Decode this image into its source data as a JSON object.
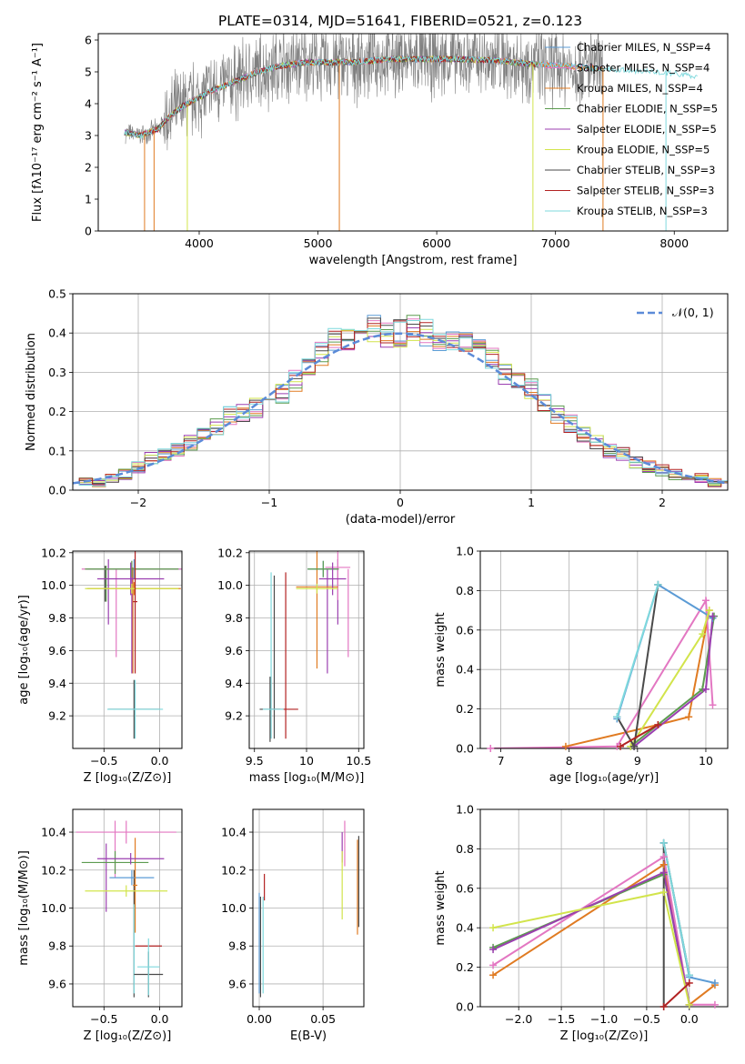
{
  "colors": {
    "chabrier_miles": "#5b9bd5",
    "salpeter_miles": "#e377c2",
    "kroupa_miles": "#e07b22",
    "chabrier_elodie": "#5c9c4f",
    "salpeter_elodie": "#9b3fb0",
    "kroupa_elodie": "#d2e44b",
    "chabrier_stelib": "#4a4a4a",
    "salpeter_stelib": "#b22222",
    "kroupa_stelib": "#7fd9dd",
    "spectrum_data": "#808080",
    "normal_curve": "#5b8bd8"
  },
  "chart_data": [
    {
      "id": "spectrum",
      "type": "line",
      "title": "PLATE=0314, MJD=51641, FIBERID=0521, z=0.123",
      "xlabel": "wavelength [Angstrom, rest frame]",
      "ylabel": "Flux [fλ10⁻¹⁷ erg cm⁻² s⁻¹ A⁻¹]",
      "xlim": [
        3150,
        8450
      ],
      "ylim": [
        0,
        6.2
      ],
      "xticks": [
        4000,
        5000,
        6000,
        7000,
        8000
      ],
      "yticks": [
        0,
        1,
        2,
        3,
        4,
        5,
        6
      ],
      "legend_position": "upper-right",
      "legend": [
        "Chabrier MILES, N_SSP=4",
        "Salpeter MILES, N_SSP=4",
        "Kroupa MILES, N_SSP=4",
        "Chabrier ELODIE, N_SSP=5",
        "Salpeter ELODIE, N_SSP=5",
        "Kroupa ELODIE, N_SSP=5",
        "Chabrier STELIB, N_SSP=3",
        "Salpeter STELIB, N_SSP=3",
        "Kroupa STELIB, N_SSP=3"
      ],
      "continuum": [
        [
          3370,
          3.1
        ],
        [
          3500,
          3.0
        ],
        [
          3650,
          3.2
        ],
        [
          3750,
          3.6
        ],
        [
          3850,
          3.9
        ],
        [
          3950,
          4.1
        ],
        [
          4100,
          4.4
        ],
        [
          4300,
          4.7
        ],
        [
          4500,
          5.0
        ],
        [
          4700,
          5.2
        ],
        [
          4900,
          5.3
        ],
        [
          5100,
          5.3
        ],
        [
          5300,
          5.3
        ],
        [
          5600,
          5.4
        ],
        [
          5900,
          5.4
        ],
        [
          6200,
          5.4
        ],
        [
          6500,
          5.35
        ],
        [
          6800,
          5.25
        ],
        [
          7200,
          5.15
        ],
        [
          7600,
          5.05
        ],
        [
          8000,
          4.95
        ],
        [
          8200,
          4.85
        ]
      ],
      "data_x_range": [
        3380,
        7400
      ],
      "data_noise_amplitude": 1.0
    },
    {
      "id": "residual_histogram",
      "type": "area",
      "xlabel": "(data-model)/error",
      "ylabel": "Normed distribution",
      "xlim": [
        -2.5,
        2.5
      ],
      "ylim": [
        0,
        0.5
      ],
      "xticks": [
        -2,
        -1,
        0,
        1,
        2
      ],
      "xtick_labels": [
        "−2",
        "−1",
        "0",
        "1",
        "2"
      ],
      "yticks": [
        0,
        0.1,
        0.2,
        0.3,
        0.4,
        0.5
      ],
      "bin_edges_range": [
        -2.55,
        2.55
      ],
      "bin_width": 0.1,
      "profile": [
        0.03,
        0.02,
        0.02,
        0.03,
        0.04,
        0.06,
        0.08,
        0.09,
        0.1,
        0.12,
        0.14,
        0.16,
        0.19,
        0.2,
        0.21,
        0.23,
        0.25,
        0.28,
        0.31,
        0.35,
        0.38,
        0.39,
        0.4,
        0.41,
        0.4,
        0.4,
        0.41,
        0.4,
        0.39,
        0.38,
        0.37,
        0.35,
        0.33,
        0.3,
        0.27,
        0.26,
        0.22,
        0.19,
        0.17,
        0.14,
        0.12,
        0.1,
        0.09,
        0.07,
        0.06,
        0.05,
        0.04,
        0.03,
        0.03,
        0.02,
        0.02
      ],
      "legend": [
        "𝒩(0, 1)"
      ],
      "legend_position": "upper-right",
      "normal": {
        "mean": 0,
        "sigma": 1
      }
    },
    {
      "id": "age_vs_Z",
      "type": "scatter",
      "xlabel": "Z [log₁₀(Z/Z⊙)]",
      "ylabel": "age  [log₁₀(age/yr)]",
      "xlim": [
        -0.78,
        0.2
      ],
      "ylim": [
        9.0,
        10.21
      ],
      "xticks": [
        -0.5,
        0.0
      ],
      "xtick_labels": [
        "−0.5",
        "0.0"
      ],
      "yticks": [
        9.2,
        9.4,
        9.6,
        9.8,
        10.0,
        10.2
      ],
      "points": [
        {
          "model": "chabrier_miles",
          "x": -0.23,
          "y": 10.1,
          "xerr": 0.42,
          "yerr": 0.06
        },
        {
          "model": "salpeter_miles",
          "x": -0.25,
          "y": 10.1,
          "xerr": 0.45,
          "yerr": 0.05
        },
        {
          "model": "kroupa_miles",
          "x": -0.23,
          "y": 9.98,
          "xerr": 0.42,
          "yerr": 0.04
        },
        {
          "model": "chabrier_elodie",
          "x": -0.25,
          "y": 10.1,
          "xerr": 0.42,
          "yerr": 0.05
        },
        {
          "model": "salpeter_elodie",
          "x": -0.26,
          "y": 10.04,
          "xerr": 0.3,
          "yerr": 0.1
        },
        {
          "model": "kroupa_elodie",
          "x": -0.25,
          "y": 9.98,
          "xerr": 0.42,
          "yerr": 0.03
        },
        {
          "model": "chabrier_stelib",
          "x": -0.23,
          "y": 9.24,
          "xerr": 0.23,
          "yerr": 0.18
        },
        {
          "model": "salpeter_stelib",
          "x": -0.22,
          "y": 9.9,
          "xerr": 0.02,
          "yerr": 0.44
        },
        {
          "model": "kroupa_stelib",
          "x": -0.22,
          "y": 9.24,
          "xerr": 0.25,
          "yerr": 0.18
        }
      ],
      "vertical_bars": [
        {
          "model": "salpeter_miles",
          "x": -0.39,
          "y1": 9.56,
          "y2": 10.1
        },
        {
          "model": "salpeter_elodie",
          "x": -0.46,
          "y1": 9.76,
          "y2": 10.16
        },
        {
          "model": "chabrier_elodie",
          "x": -0.48,
          "y1": 9.9,
          "y2": 10.12
        },
        {
          "model": "chabrier_stelib",
          "x": -0.49,
          "y1": 9.9,
          "y2": 10.12
        },
        {
          "model": "salpeter_elodie",
          "x": -0.25,
          "y1": 9.46,
          "y2": 10.14
        },
        {
          "model": "kroupa_miles",
          "x": -0.24,
          "y1": 9.46,
          "y2": 10.11
        }
      ]
    },
    {
      "id": "age_vs_mass",
      "type": "scatter",
      "xlabel": "mass [log₁₀(M/M⊙)]",
      "ylabel": "",
      "xlim": [
        9.45,
        10.55
      ],
      "ylim": [
        9.0,
        10.21
      ],
      "xticks": [
        9.5,
        10.0,
        10.5
      ],
      "yticks": [
        9.2,
        9.4,
        9.6,
        9.8,
        10.0,
        10.2
      ],
      "points": [
        {
          "model": "chabrier_miles",
          "x": 10.16,
          "y": 10.1,
          "xerr": 0.15,
          "yerr": 0.05
        },
        {
          "model": "salpeter_miles",
          "x": 10.3,
          "y": 10.11,
          "xerr": 0.12,
          "yerr": 0.2
        },
        {
          "model": "kroupa_miles",
          "x": 10.1,
          "y": 9.99,
          "xerr": 0.2,
          "yerr": 0.5
        },
        {
          "model": "chabrier_elodie",
          "x": 10.16,
          "y": 10.1,
          "xerr": 0.15,
          "yerr": 0.05
        },
        {
          "model": "salpeter_elodie",
          "x": 10.25,
          "y": 10.04,
          "xerr": 0.13,
          "yerr": 0.1
        },
        {
          "model": "kroupa_elodie",
          "x": 10.1,
          "y": 9.98,
          "xerr": 0.2,
          "yerr": 0.03
        },
        {
          "model": "chabrier_stelib",
          "x": 9.65,
          "y": 9.24,
          "xerr": 0.1,
          "yerr": 0.2
        },
        {
          "model": "salpeter_stelib",
          "x": 9.8,
          "y": 9.24,
          "xerr": 0.12,
          "yerr": 0.0
        },
        {
          "model": "kroupa_stelib",
          "x": 9.68,
          "y": 9.24,
          "xerr": 0.1,
          "yerr": 0.0
        }
      ],
      "vertical_bars": [
        {
          "model": "kroupa_stelib",
          "x": 9.66,
          "y1": 9.06,
          "y2": 10.08
        },
        {
          "model": "chabrier_stelib",
          "x": 9.69,
          "y1": 9.06,
          "y2": 10.06
        },
        {
          "model": "salpeter_stelib",
          "x": 9.8,
          "y1": 9.06,
          "y2": 10.08
        },
        {
          "model": "salpeter_elodie",
          "x": 10.2,
          "y1": 9.46,
          "y2": 10.1
        },
        {
          "model": "salpeter_miles",
          "x": 10.4,
          "y1": 9.56,
          "y2": 10.1
        },
        {
          "model": "salpeter_elodie",
          "x": 10.3,
          "y1": 9.76,
          "y2": 10.16
        }
      ]
    },
    {
      "id": "mass_weight_vs_age",
      "type": "line",
      "xlabel": "age  [log₁₀(age/yr)]",
      "ylabel": "mass weight",
      "xlim": [
        6.7,
        10.32
      ],
      "ylim": [
        0,
        1.0
      ],
      "xticks": [
        7,
        8,
        9,
        10
      ],
      "yticks": [
        0.0,
        0.2,
        0.4,
        0.6,
        0.8,
        1.0
      ],
      "series": [
        {
          "model": "kroupa_miles",
          "x": [
            7.95,
            9.3,
            9.75,
            10.05
          ],
          "y": [
            0.01,
            0.12,
            0.16,
            0.7
          ]
        },
        {
          "model": "salpeter_miles",
          "x": [
            6.85,
            8.7,
            10.0,
            10.1
          ],
          "y": [
            0.0,
            0.01,
            0.75,
            0.22
          ]
        },
        {
          "model": "chabrier_miles",
          "x": [
            8.7,
            9.3,
            10.1
          ],
          "y": [
            0.15,
            0.83,
            0.66
          ]
        },
        {
          "model": "chabrier_elodie",
          "x": [
            8.9,
            9.95,
            10.12
          ],
          "y": [
            0.01,
            0.3,
            0.67
          ]
        },
        {
          "model": "salpeter_elodie",
          "x": [
            8.95,
            10.0,
            10.1
          ],
          "y": [
            0.01,
            0.3,
            0.67
          ]
        },
        {
          "model": "kroupa_elodie",
          "x": [
            8.9,
            9.95,
            10.05
          ],
          "y": [
            0.01,
            0.58,
            0.7
          ]
        },
        {
          "model": "chabrier_stelib",
          "x": [
            8.7,
            8.95,
            9.3
          ],
          "y": [
            0.16,
            0.01,
            0.83
          ]
        },
        {
          "model": "salpeter_stelib",
          "x": [
            8.75,
            9.3
          ],
          "y": [
            0.01,
            0.12
          ]
        },
        {
          "model": "kroupa_stelib",
          "x": [
            8.7,
            9.3
          ],
          "y": [
            0.16,
            0.83
          ]
        }
      ]
    },
    {
      "id": "mass_vs_Z",
      "type": "scatter",
      "xlabel": "Z [log₁₀(Z/Z⊙)]",
      "ylabel": "mass [log₁₀(M/M⊙)]",
      "xlim": [
        -0.78,
        0.2
      ],
      "ylim": [
        9.48,
        10.52
      ],
      "xticks": [
        -0.5,
        0.0
      ],
      "xtick_labels": [
        "−0.5",
        "0.0"
      ],
      "yticks": [
        9.6,
        9.8,
        10.0,
        10.2,
        10.4
      ],
      "points": [
        {
          "model": "chabrier_miles",
          "x": -0.25,
          "y": 10.16,
          "xerr": 0.2,
          "yerr": 0.04
        },
        {
          "model": "salpeter_miles",
          "x": -0.3,
          "y": 10.4,
          "xerr": 0.45,
          "yerr": 0.06
        },
        {
          "model": "kroupa_miles",
          "x": -0.22,
          "y": 10.12,
          "xerr": 0.02,
          "yerr": 0.25
        },
        {
          "model": "chabrier_elodie",
          "x": -0.4,
          "y": 10.24,
          "xerr": 0.3,
          "yerr": 0.06
        },
        {
          "model": "salpeter_elodie",
          "x": -0.26,
          "y": 10.26,
          "xerr": 0.3,
          "yerr": 0.03
        },
        {
          "model": "kroupa_elodie",
          "x": -0.3,
          "y": 10.09,
          "xerr": 0.37,
          "yerr": 0.03
        },
        {
          "model": "chabrier_stelib",
          "x": -0.1,
          "y": 9.65,
          "xerr": 0.13,
          "yerr": 0.12
        },
        {
          "model": "salpeter_stelib",
          "x": -0.1,
          "y": 9.8,
          "xerr": 0.12,
          "yerr": 0.0
        },
        {
          "model": "kroupa_stelib",
          "x": -0.1,
          "y": 9.69,
          "xerr": 0.1,
          "yerr": 0.15
        }
      ],
      "vertical_bars": [
        {
          "model": "salpeter_elodie",
          "x": -0.48,
          "y1": 9.98,
          "y2": 10.34
        },
        {
          "model": "salpeter_miles",
          "x": -0.4,
          "y1": 10.16,
          "y2": 10.46
        },
        {
          "model": "chabrier_stelib",
          "x": -0.23,
          "y1": 9.53,
          "y2": 10.2
        },
        {
          "model": "kroupa_stelib",
          "x": -0.23,
          "y1": 9.55,
          "y2": 10.02
        }
      ]
    },
    {
      "id": "mass_vs_ebv",
      "type": "scatter",
      "xlabel": "E(B-V)",
      "ylabel": "",
      "xlim": [
        -0.005,
        0.082
      ],
      "ylim": [
        9.48,
        10.52
      ],
      "xticks": [
        0.0,
        0.05
      ],
      "xtick_labels": [
        "0.00",
        "0.05"
      ],
      "yticks": [
        9.6,
        9.8,
        10.0,
        10.2,
        10.4
      ],
      "vertical_bars": [
        {
          "model": "chabrier_miles",
          "x": 0.0,
          "y1": 9.55,
          "y2": 10.08
        },
        {
          "model": "chabrier_stelib",
          "x": 0.001,
          "y1": 9.53,
          "y2": 10.06
        },
        {
          "model": "kroupa_stelib",
          "x": 0.003,
          "y1": 9.55,
          "y2": 10.06
        },
        {
          "model": "salpeter_stelib",
          "x": 0.004,
          "y1": 10.04,
          "y2": 10.18
        },
        {
          "model": "salpeter_miles",
          "x": 0.067,
          "y1": 10.22,
          "y2": 10.46
        },
        {
          "model": "salpeter_elodie",
          "x": 0.065,
          "y1": 10.24,
          "y2": 10.4
        },
        {
          "model": "kroupa_elodie",
          "x": 0.065,
          "y1": 9.94,
          "y2": 10.3
        },
        {
          "model": "kroupa_miles",
          "x": 0.077,
          "y1": 9.86,
          "y2": 10.36
        },
        {
          "model": "chabrier_stelib",
          "x": 0.078,
          "y1": 9.9,
          "y2": 10.38
        }
      ]
    },
    {
      "id": "mass_weight_vs_Z",
      "type": "line",
      "xlabel": "Z [log₁₀(Z/Z⊙)]",
      "ylabel": "mass weight",
      "xlim": [
        -2.45,
        0.45
      ],
      "ylim": [
        0,
        1.0
      ],
      "xticks": [
        -2.0,
        -1.5,
        -1.0,
        -0.5,
        0.0
      ],
      "xtick_labels": [
        "−2.0",
        "−1.5",
        "−1.0",
        "−0.5",
        "0.0"
      ],
      "yticks": [
        0.0,
        0.2,
        0.4,
        0.6,
        0.8,
        1.0
      ],
      "series": [
        {
          "model": "kroupa_miles",
          "x": [
            -2.3,
            -0.3,
            0.0,
            0.3
          ],
          "y": [
            0.16,
            0.72,
            0.01,
            0.11
          ]
        },
        {
          "model": "salpeter_miles",
          "x": [
            -2.3,
            -0.3,
            0.0,
            0.3
          ],
          "y": [
            0.21,
            0.76,
            0.01,
            0.01
          ]
        },
        {
          "model": "chabrier_miles",
          "x": [
            -0.3,
            0.0,
            0.3
          ],
          "y": [
            0.83,
            0.15,
            0.12
          ]
        },
        {
          "model": "chabrier_elodie",
          "x": [
            -2.3,
            -0.3,
            0.0
          ],
          "y": [
            0.3,
            0.67,
            0.01
          ]
        },
        {
          "model": "salpeter_elodie",
          "x": [
            -2.3,
            -0.3,
            0.0
          ],
          "y": [
            0.29,
            0.68,
            0.01
          ]
        },
        {
          "model": "kroupa_elodie",
          "x": [
            -2.3,
            -0.3,
            0.0
          ],
          "y": [
            0.4,
            0.58,
            0.01
          ]
        },
        {
          "model": "chabrier_stelib",
          "x": [
            -0.3,
            -0.3,
            0.0
          ],
          "y": [
            0.0,
            0.83,
            0.16
          ]
        },
        {
          "model": "salpeter_stelib",
          "x": [
            -0.3,
            0.0
          ],
          "y": [
            0.0,
            0.12
          ]
        },
        {
          "model": "kroupa_stelib",
          "x": [
            -0.3,
            0.0
          ],
          "y": [
            0.83,
            0.16
          ]
        }
      ]
    }
  ]
}
